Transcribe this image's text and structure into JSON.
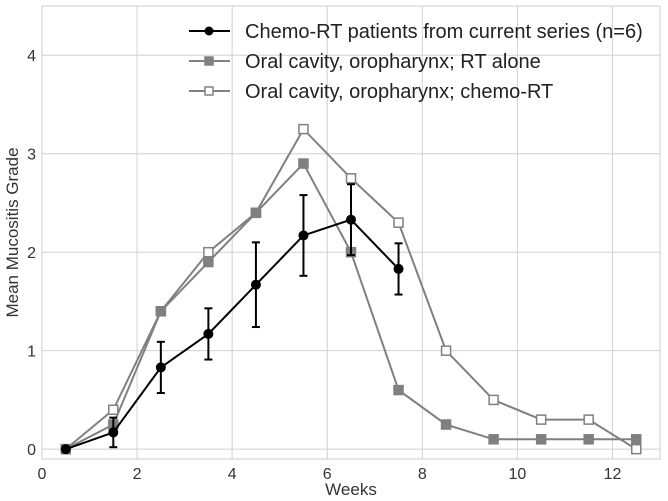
{
  "chart_data": {
    "type": "line",
    "xlabel": "Weeks",
    "ylabel": "Mean Mucositis Grade",
    "xlim": [
      0,
      13
    ],
    "ylim": [
      -0.1,
      4.5
    ],
    "xticks": [
      0,
      2,
      4,
      6,
      8,
      10,
      12
    ],
    "yticks": [
      0,
      1,
      2,
      3,
      4
    ],
    "grid": true,
    "legend_position": "top-right",
    "series": [
      {
        "name": "Chemo-RT patients from current series (n=6)",
        "color": "#000000",
        "marker": "circle",
        "x": [
          0.5,
          1.5,
          2.5,
          3.5,
          4.5,
          5.5,
          6.5,
          7.5
        ],
        "y": [
          0.0,
          0.17,
          0.83,
          1.17,
          1.67,
          2.17,
          2.33,
          1.83
        ],
        "err_low": [
          0.0,
          0.15,
          0.26,
          0.26,
          0.43,
          0.41,
          0.36,
          0.26
        ],
        "err_high": [
          0.0,
          0.15,
          0.26,
          0.26,
          0.43,
          0.41,
          0.36,
          0.26
        ]
      },
      {
        "name": "Oral cavity, oropharynx; RT alone",
        "color": "#808080",
        "marker": "square-filled",
        "x": [
          0.5,
          1.5,
          2.5,
          3.5,
          4.5,
          5.5,
          6.5,
          7.5,
          8.5,
          9.5,
          10.5,
          11.5,
          12.5
        ],
        "y": [
          0.0,
          0.25,
          1.4,
          1.9,
          2.4,
          2.9,
          2.0,
          0.6,
          0.25,
          0.1,
          0.1,
          0.1,
          0.1
        ]
      },
      {
        "name": "Oral cavity, oropharynx; chemo-RT",
        "color": "#808080",
        "marker": "square-open",
        "x": [
          0.5,
          1.5,
          2.5,
          3.5,
          4.5,
          5.5,
          6.5,
          7.5,
          8.5,
          9.5,
          10.5,
          11.5,
          12.5
        ],
        "y": [
          0.0,
          0.4,
          1.4,
          2.0,
          2.4,
          3.25,
          2.75,
          2.3,
          1.0,
          0.5,
          0.3,
          0.3,
          0.0
        ]
      }
    ]
  }
}
